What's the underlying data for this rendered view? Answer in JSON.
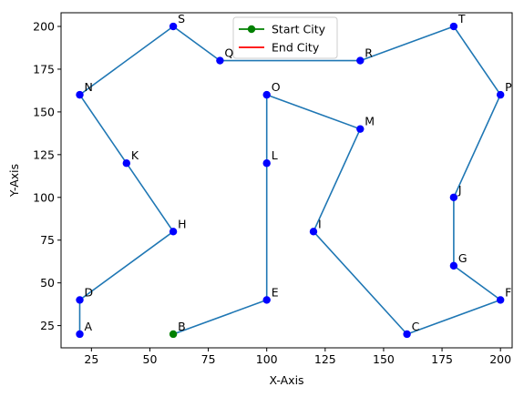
{
  "chart_data": {
    "type": "line",
    "xlabel": "X-Axis",
    "ylabel": "Y-Axis",
    "xlim": [
      12,
      205
    ],
    "ylim": [
      12,
      208
    ],
    "x_ticks": [
      25,
      50,
      75,
      100,
      125,
      150,
      175,
      200
    ],
    "y_ticks": [
      25,
      50,
      75,
      100,
      125,
      150,
      175,
      200
    ],
    "grid": false,
    "legend": {
      "placement": "top-center",
      "entries": [
        {
          "label": "Start City",
          "color": "#008000",
          "marker": "circle"
        },
        {
          "label": "End City",
          "color": "#ff0000",
          "marker": "none"
        }
      ]
    },
    "colors": {
      "route": "#1f77b4",
      "city": "#0000ff",
      "start": "#008000",
      "end": "#ff0000"
    },
    "cities": [
      {
        "name": "A",
        "x": 20,
        "y": 20
      },
      {
        "name": "B",
        "x": 60,
        "y": 20
      },
      {
        "name": "C",
        "x": 160,
        "y": 20
      },
      {
        "name": "D",
        "x": 20,
        "y": 40
      },
      {
        "name": "E",
        "x": 100,
        "y": 40
      },
      {
        "name": "F",
        "x": 200,
        "y": 40
      },
      {
        "name": "G",
        "x": 180,
        "y": 60
      },
      {
        "name": "H",
        "x": 60,
        "y": 80
      },
      {
        "name": "I",
        "x": 120,
        "y": 80
      },
      {
        "name": "J",
        "x": 180,
        "y": 100
      },
      {
        "name": "K",
        "x": 40,
        "y": 120
      },
      {
        "name": "L",
        "x": 100,
        "y": 120
      },
      {
        "name": "M",
        "x": 140,
        "y": 140
      },
      {
        "name": "N",
        "x": 20,
        "y": 160
      },
      {
        "name": "O",
        "x": 100,
        "y": 160
      },
      {
        "name": "P",
        "x": 200,
        "y": 160
      },
      {
        "name": "Q",
        "x": 80,
        "y": 180
      },
      {
        "name": "R",
        "x": 140,
        "y": 180
      },
      {
        "name": "S",
        "x": 60,
        "y": 200
      },
      {
        "name": "T",
        "x": 180,
        "y": 200
      }
    ],
    "route": [
      "B",
      "E",
      "L",
      "O",
      "M",
      "I",
      "C",
      "F",
      "G",
      "J",
      "P",
      "T",
      "R",
      "Q",
      "S",
      "N",
      "K",
      "H",
      "D",
      "A"
    ],
    "start_city": "B"
  }
}
